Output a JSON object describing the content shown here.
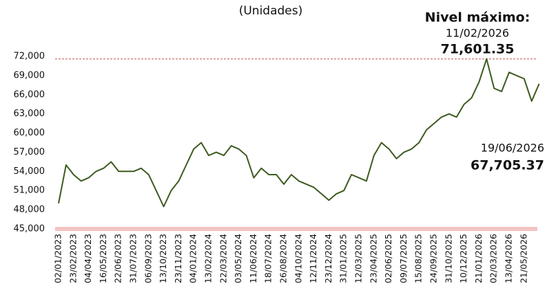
{
  "chart_data": {
    "type": "line",
    "title": "(Unidades)",
    "categories": [
      "02/01/2023",
      null,
      "23/02/2023",
      null,
      "04/04/2023",
      null,
      "16/05/2023",
      null,
      "22/06/2023",
      null,
      "31/07/2023",
      null,
      "06/09/2023",
      null,
      "13/10/2023",
      null,
      "23/11/2023",
      null,
      "04/01/2024",
      null,
      "13/02/2024",
      null,
      "22/03/2024",
      null,
      "03/05/2024",
      null,
      "11/06/2024",
      null,
      "18/07/2024",
      null,
      "26/08/2024",
      null,
      "04/10/2024",
      null,
      "12/11/2024",
      null,
      "23/12/2024",
      null,
      "31/01/2025",
      null,
      "12/03/2025",
      null,
      "23/04/2025",
      null,
      "02/06/2025",
      null,
      "09/07/2025",
      null,
      "15/08/2025",
      null,
      "24/09/2025",
      null,
      "31/10/2025",
      null,
      "10/12/2025",
      null,
      "21/01/2026",
      null,
      "02/03/2026",
      null,
      "13/04/2026",
      null,
      "21/05/2026",
      null,
      null
    ],
    "values": [
      49000,
      55000,
      53500,
      52500,
      53000,
      54000,
      54500,
      55500,
      54000,
      54000,
      54000,
      54500,
      53500,
      51000,
      48500,
      51000,
      52500,
      55000,
      57500,
      58500,
      56500,
      57000,
      56500,
      58000,
      57500,
      56500,
      53000,
      54500,
      53500,
      53500,
      52000,
      53500,
      52500,
      52000,
      51500,
      50500,
      49500,
      50500,
      51000,
      53500,
      53000,
      52500,
      56500,
      58500,
      57500,
      56000,
      57000,
      57500,
      58500,
      60500,
      61500,
      62500,
      63000,
      62500,
      64500,
      65500,
      68000,
      71601.35,
      67000,
      66500,
      69500,
      69000,
      68500,
      65000,
      67705.37
    ],
    "color": "#3d5a1f",
    "ylim": [
      45000,
      72000
    ],
    "yticks": [
      {
        "value": 45000,
        "label": "45,000"
      },
      {
        "value": 48000,
        "label": "48,000"
      },
      {
        "value": 51000,
        "label": "51,000"
      },
      {
        "value": 54000,
        "label": "54,000"
      },
      {
        "value": 57000,
        "label": "57,000"
      },
      {
        "value": 60000,
        "label": "60,000"
      },
      {
        "value": 63000,
        "label": "63,000"
      },
      {
        "value": 66000,
        "label": "66,000"
      },
      {
        "value": 69000,
        "label": "69,000"
      },
      {
        "value": 72000,
        "label": "72,000"
      }
    ],
    "annotations": [
      {
        "title": "Nivel máximo:",
        "date": "11/02/2026",
        "value": 71601.35,
        "label": "71,601.35"
      },
      {
        "date": "19/06/2026",
        "value": 67705.37,
        "label": "67,705.37"
      }
    ]
  }
}
